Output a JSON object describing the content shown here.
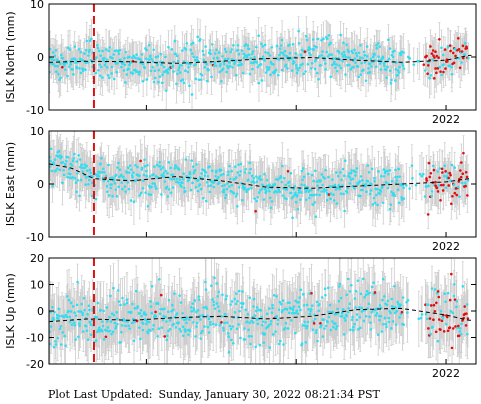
{
  "footer": {
    "label": "Plot Last Updated:",
    "timestamp": "Sunday, January 30, 2022 08:21:34 PST"
  },
  "colors": {
    "daily_points": "#33ddf0",
    "recent_points": "#e01010",
    "error_bars": "#cccccc",
    "trend": "#000000",
    "event_line": "#dd1111"
  },
  "chart_data": [
    {
      "type": "scatter",
      "ylabel": "ISLK North (mm)",
      "ylim": [
        -10,
        10
      ],
      "yticks": [
        -10,
        0,
        10
      ],
      "x_tick_label": "2022",
      "x_range": [
        2019.35,
        2022.2
      ],
      "event_line_x": 2019.65,
      "trend": {
        "x": [
          2019.35,
          2019.6,
          2019.9,
          2020.2,
          2020.5,
          2020.8,
          2021.1,
          2021.4,
          2021.7,
          2022.0,
          2022.15
        ],
        "y": [
          -1.0,
          -0.8,
          -0.9,
          -1.2,
          -0.8,
          -0.3,
          -0.1,
          -0.6,
          -1.0,
          -0.6,
          0.3
        ]
      },
      "noise_sd_mm": 1.8,
      "error_bar_mm": 3.0
    },
    {
      "type": "scatter",
      "ylabel": "ISLK East (mm)",
      "ylim": [
        -10,
        10
      ],
      "yticks": [
        -10,
        0,
        10
      ],
      "x_tick_label": "2022",
      "x_range": [
        2019.35,
        2022.2
      ],
      "event_line_x": 2019.65,
      "trend": {
        "x": [
          2019.35,
          2019.5,
          2019.65,
          2019.9,
          2020.2,
          2020.5,
          2020.8,
          2021.1,
          2021.4,
          2021.7,
          2022.0,
          2022.15
        ],
        "y": [
          3.8,
          3.0,
          1.0,
          0.6,
          1.4,
          0.6,
          -0.6,
          -0.8,
          -0.4,
          0.0,
          0.4,
          1.0
        ]
      },
      "noise_sd_mm": 1.8,
      "error_bar_mm": 3.5
    },
    {
      "type": "scatter",
      "ylabel": "ISLK Up (mm)",
      "ylim": [
        -20,
        20
      ],
      "yticks": [
        -20,
        -10,
        0,
        10,
        20
      ],
      "x_tick_label": "2022",
      "x_range": [
        2019.35,
        2022.2
      ],
      "event_line_x": 2019.65,
      "trend": {
        "x": [
          2019.35,
          2019.6,
          2019.9,
          2020.2,
          2020.5,
          2020.8,
          2021.1,
          2021.4,
          2021.7,
          2022.0,
          2022.15
        ],
        "y": [
          -4.0,
          -3.0,
          -3.5,
          -2.5,
          -2.0,
          -3.0,
          -2.0,
          0.5,
          1.0,
          -1.5,
          -3.5
        ]
      },
      "noise_sd_mm": 5.0,
      "error_bar_mm": 9.0
    }
  ]
}
